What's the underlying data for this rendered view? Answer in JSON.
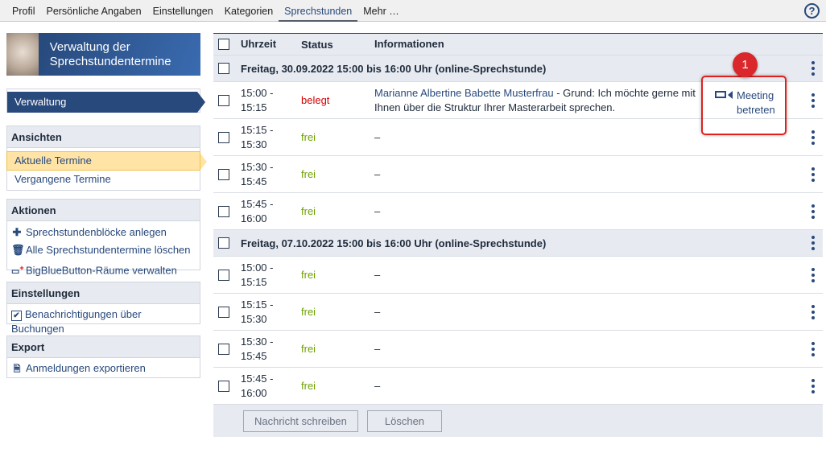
{
  "nav": {
    "tabs": [
      "Profil",
      "Persönliche Angaben",
      "Einstellungen",
      "Kategorien",
      "Sprechstunden",
      "Mehr …"
    ],
    "active": 4,
    "help": "?"
  },
  "sidebar": {
    "title": "Verwaltung der Sprechstundentermine",
    "current": "Verwaltung",
    "ansichten": {
      "title": "Ansichten",
      "items": [
        "Aktuelle Termine",
        "Vergangene Termine"
      ]
    },
    "aktionen": {
      "title": "Aktionen",
      "items": [
        "Sprechstundenblöcke anlegen",
        "Alle Sprechstundentermine löschen",
        "BigBlueButton-Räume verwalten"
      ]
    },
    "einstellungen": {
      "title": "Einstellungen",
      "items": [
        "Benachrichtigungen über Buchungen"
      ]
    },
    "export": {
      "title": "Export",
      "items": [
        "Anmeldungen exportieren"
      ]
    }
  },
  "table": {
    "headers": [
      "Uhrzeit",
      "Status",
      "Informationen"
    ],
    "groups": [
      {
        "title": "Freitag, 30.09.2022 15:00 bis 16:00 Uhr (online-Sprechstunde)",
        "slots": [
          {
            "time": "15:00 - 15:15",
            "status": "belegt",
            "name": "Marianne Albertine Babette Musterfrau",
            "info": " - Grund: Ich möchte gerne mit Ihnen über die Struktur Ihrer Masterarbeit sprechen.",
            "action": "Meeting betreten"
          },
          {
            "time": "15:15 - 15:30",
            "status": "frei",
            "info": "–"
          },
          {
            "time": "15:30 - 15:45",
            "status": "frei",
            "info": "–"
          },
          {
            "time": "15:45 - 16:00",
            "status": "frei",
            "info": "–"
          }
        ]
      },
      {
        "title": "Freitag, 07.10.2022 15:00 bis 16:00 Uhr (online-Sprechstunde)",
        "slots": [
          {
            "time": "15:00 - 15:15",
            "status": "frei",
            "info": "–"
          },
          {
            "time": "15:15 - 15:30",
            "status": "frei",
            "info": "–"
          },
          {
            "time": "15:30 - 15:45",
            "status": "frei",
            "info": "–"
          },
          {
            "time": "15:45 - 16:00",
            "status": "frei",
            "info": "–"
          }
        ]
      }
    ]
  },
  "footer": {
    "buttons": [
      "Nachricht schreiben",
      "Löschen"
    ]
  },
  "annotation": {
    "badge": "1"
  },
  "colors": {
    "accent": "#28497c",
    "free": "#6ea200",
    "booked": "#d60000",
    "highlight": "#e0201c"
  }
}
